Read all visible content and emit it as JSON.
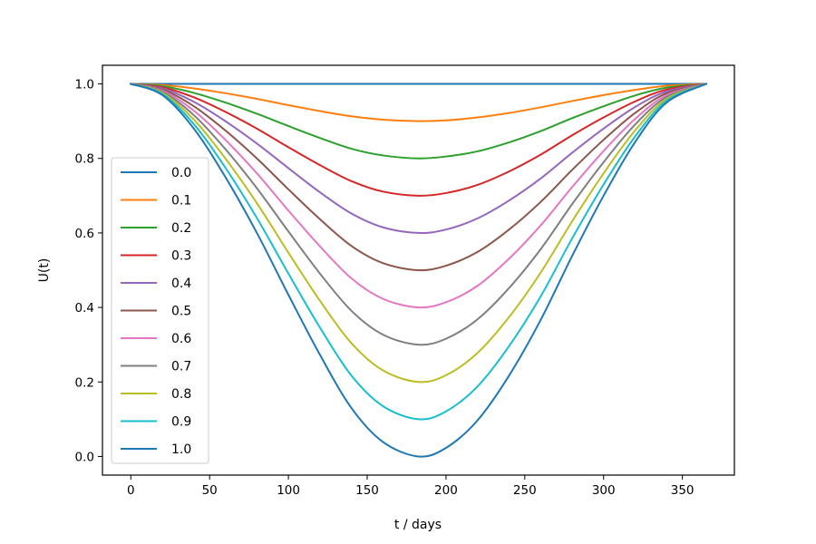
{
  "chart_data": {
    "type": "line",
    "title": "",
    "xlabel": "t / days",
    "ylabel": "U(t)",
    "xlim": [
      -18,
      383
    ],
    "ylim": [
      -0.05,
      1.05
    ],
    "xticks": [
      0,
      50,
      100,
      150,
      200,
      250,
      300,
      350
    ],
    "xtick_labels": [
      "0",
      "50",
      "100",
      "150",
      "200",
      "250",
      "300",
      "350"
    ],
    "yticks": [
      0.0,
      0.2,
      0.4,
      0.6,
      0.8,
      1.0
    ],
    "ytick_labels": [
      "0.0",
      "0.2",
      "0.4",
      "0.6",
      "0.8",
      "1.0"
    ],
    "grid": false,
    "legend_position": "lower-left",
    "x": [
      0,
      20,
      40,
      60,
      80,
      100,
      120,
      140,
      160,
      182.5,
      200,
      220,
      240,
      260,
      280,
      300,
      320,
      340,
      365
    ],
    "series": [
      {
        "name": "0.0",
        "color": "#1f77b4",
        "values": [
          1.0,
          1.0,
          1.0,
          1.0,
          1.0,
          1.0,
          1.0,
          1.0,
          1.0,
          1.0,
          1.0,
          1.0,
          1.0,
          1.0,
          1.0,
          1.0,
          1.0,
          1.0,
          1.0
        ]
      },
      {
        "name": "0.1",
        "color": "#ff7f0e",
        "values": [
          1.0,
          0.997,
          0.988,
          0.975,
          0.96,
          0.943,
          0.927,
          0.913,
          0.904,
          0.9,
          0.902,
          0.91,
          0.922,
          0.937,
          0.954,
          0.97,
          0.984,
          0.995,
          1.0
        ]
      },
      {
        "name": "0.2",
        "color": "#2ca02c",
        "values": [
          1.0,
          0.994,
          0.976,
          0.95,
          0.92,
          0.887,
          0.855,
          0.826,
          0.808,
          0.8,
          0.805,
          0.819,
          0.843,
          0.873,
          0.908,
          0.94,
          0.969,
          0.99,
          1.0
        ]
      },
      {
        "name": "0.3",
        "color": "#d62728",
        "values": [
          1.0,
          0.991,
          0.964,
          0.925,
          0.88,
          0.83,
          0.782,
          0.739,
          0.711,
          0.7,
          0.707,
          0.729,
          0.765,
          0.81,
          0.862,
          0.91,
          0.953,
          0.985,
          1.0
        ]
      },
      {
        "name": "0.4",
        "color": "#9467bd",
        "values": [
          1.0,
          0.988,
          0.952,
          0.9,
          0.84,
          0.774,
          0.709,
          0.652,
          0.615,
          0.6,
          0.609,
          0.639,
          0.687,
          0.746,
          0.815,
          0.88,
          0.938,
          0.98,
          1.0
        ]
      },
      {
        "name": "0.5",
        "color": "#8c564b",
        "values": [
          1.0,
          0.985,
          0.94,
          0.875,
          0.8,
          0.717,
          0.637,
          0.565,
          0.519,
          0.5,
          0.512,
          0.549,
          0.609,
          0.683,
          0.769,
          0.85,
          0.922,
          0.975,
          1.0
        ]
      },
      {
        "name": "0.6",
        "color": "#e377c2",
        "values": [
          1.0,
          0.982,
          0.928,
          0.85,
          0.76,
          0.66,
          0.564,
          0.478,
          0.423,
          0.4,
          0.414,
          0.458,
          0.531,
          0.62,
          0.723,
          0.82,
          0.906,
          0.97,
          1.0
        ]
      },
      {
        "name": "0.7",
        "color": "#7f7f7f",
        "values": [
          1.0,
          0.979,
          0.916,
          0.825,
          0.72,
          0.604,
          0.491,
          0.391,
          0.327,
          0.3,
          0.316,
          0.368,
          0.452,
          0.556,
          0.677,
          0.79,
          0.891,
          0.965,
          1.0
        ]
      },
      {
        "name": "0.8",
        "color": "#bcbd22",
        "values": [
          1.0,
          0.976,
          0.904,
          0.8,
          0.68,
          0.547,
          0.418,
          0.304,
          0.231,
          0.2,
          0.218,
          0.278,
          0.374,
          0.493,
          0.631,
          0.76,
          0.875,
          0.96,
          1.0
        ]
      },
      {
        "name": "0.9",
        "color": "#17becf",
        "values": [
          1.0,
          0.973,
          0.892,
          0.775,
          0.64,
          0.491,
          0.346,
          0.217,
          0.135,
          0.1,
          0.121,
          0.188,
          0.296,
          0.429,
          0.585,
          0.73,
          0.859,
          0.955,
          1.0
        ]
      },
      {
        "name": "1.0",
        "color": "#1f77b4",
        "values": [
          1.0,
          0.97,
          0.88,
          0.75,
          0.6,
          0.434,
          0.273,
          0.13,
          0.039,
          0.0,
          0.023,
          0.097,
          0.217,
          0.366,
          0.538,
          0.7,
          0.844,
          0.95,
          1.0
        ]
      }
    ]
  }
}
